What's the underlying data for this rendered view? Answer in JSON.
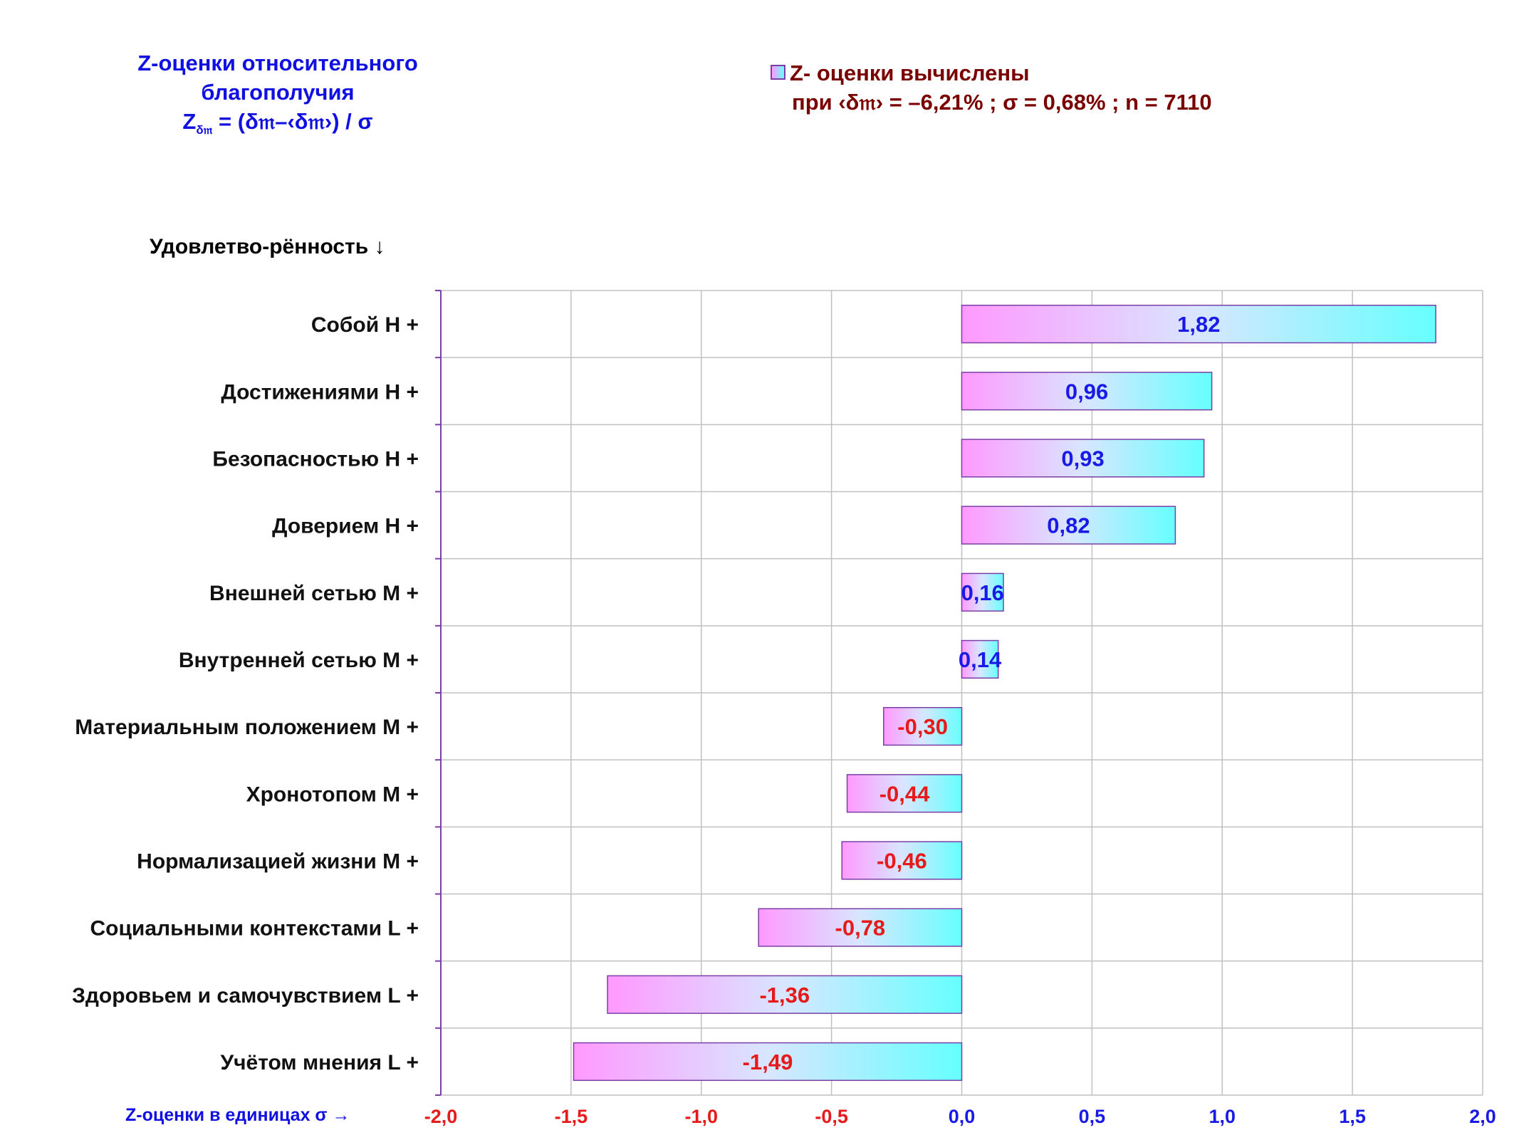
{
  "header": {
    "title_line1": "Z-оценки  относительного",
    "title_line2": "благополучия",
    "formula_z": "Z",
    "formula_sub": "δ𝔪",
    "formula_rest": " = (δ𝔪–‹δ𝔪›) / σ"
  },
  "legend": {
    "line1": "Z- оценки вычислены",
    "line2": "при ‹δ𝔪› = –6,21% ; σ = 0,68% ; n = 7110"
  },
  "axis_captions": {
    "y": "Удовлетво-рённость ↓",
    "x": "Z-оценки в единицах σ →"
  },
  "colors": {
    "positive_label": "#1a1ae6",
    "negative_label": "#e61a1a",
    "bar_gradient_start": "#ff99ff",
    "bar_gradient_end": "#66ffff",
    "bar_border": "#7a3fa6",
    "grid": "#c0c0c0",
    "axis": "#7a3fa6"
  },
  "chart_data": {
    "type": "bar",
    "orientation": "horizontal",
    "categories": [
      "Собой  Н +",
      "Достижениями  Н +",
      "Безопасностью  Н +",
      "Доверием  Н +",
      "Внешней сетью  М +",
      "Внутренней сетью  М +",
      "Материальным положением  М +",
      "Хронотопом  М +",
      "Нормализацией жизни  М +",
      "Социальными контекстами  L +",
      "Здоровьем и самочувствием  L +",
      "Учётом мнения  L +"
    ],
    "values": [
      1.82,
      0.96,
      0.93,
      0.82,
      0.16,
      0.14,
      -0.3,
      -0.44,
      -0.46,
      -0.78,
      -1.36,
      -1.49
    ],
    "value_labels": [
      "1,82",
      "0,96",
      "0,93",
      "0,82",
      "0,16",
      "0,14",
      "-0,30",
      "-0,44",
      "-0,46",
      "-0,78",
      "-1,36",
      "-1,49"
    ],
    "xlim": [
      -2.0,
      2.0
    ],
    "xticks": [
      -2.0,
      -1.5,
      -1.0,
      -0.5,
      0.0,
      0.5,
      1.0,
      1.5,
      2.0
    ],
    "xtick_labels": [
      "-2,0",
      "-1,5",
      "-1,0",
      "-0,5",
      "0,0",
      "0,5",
      "1,0",
      "1,5",
      "2,0"
    ],
    "xlabel": "Z-оценки в единицах σ →",
    "ylabel": "Удовлетво-рённость ↓",
    "grid": true,
    "legend": "top-right"
  }
}
